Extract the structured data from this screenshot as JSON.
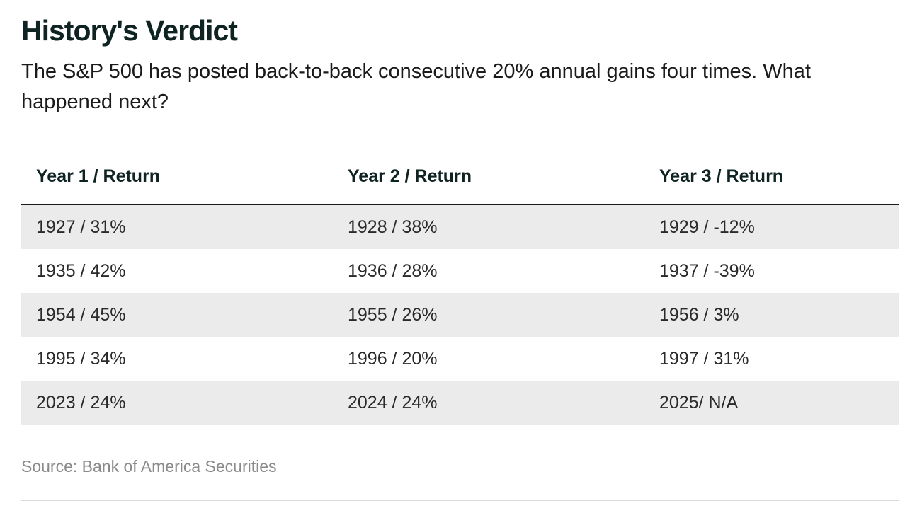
{
  "title": "History's Verdict",
  "subtitle": "The S&P 500 has posted back-to-back consecutive 20% annual gains four times. What happened next?",
  "source": "Source: Bank of America Securities",
  "colors": {
    "title": "#0f2322",
    "row_shade": "#ebebeb",
    "source_text": "#8a8a8a"
  },
  "chart_data": {
    "type": "table",
    "title": "History's Verdict",
    "columns": [
      "Year 1 / Return",
      "Year 2 / Return",
      "Year 3 / Return"
    ],
    "rows": [
      [
        "1927 / 31%",
        "1928 / 38%",
        "1929 / -12%"
      ],
      [
        "1935 / 42%",
        "1936 / 28%",
        "1937 / -39%"
      ],
      [
        "1954 / 45%",
        "1955 / 26%",
        "1956 / 3%"
      ],
      [
        "1995 / 34%",
        "1996 / 20%",
        "1997 / 31%"
      ],
      [
        "2023 / 24%",
        "2024 / 24%",
        "2025/ N/A"
      ]
    ]
  }
}
